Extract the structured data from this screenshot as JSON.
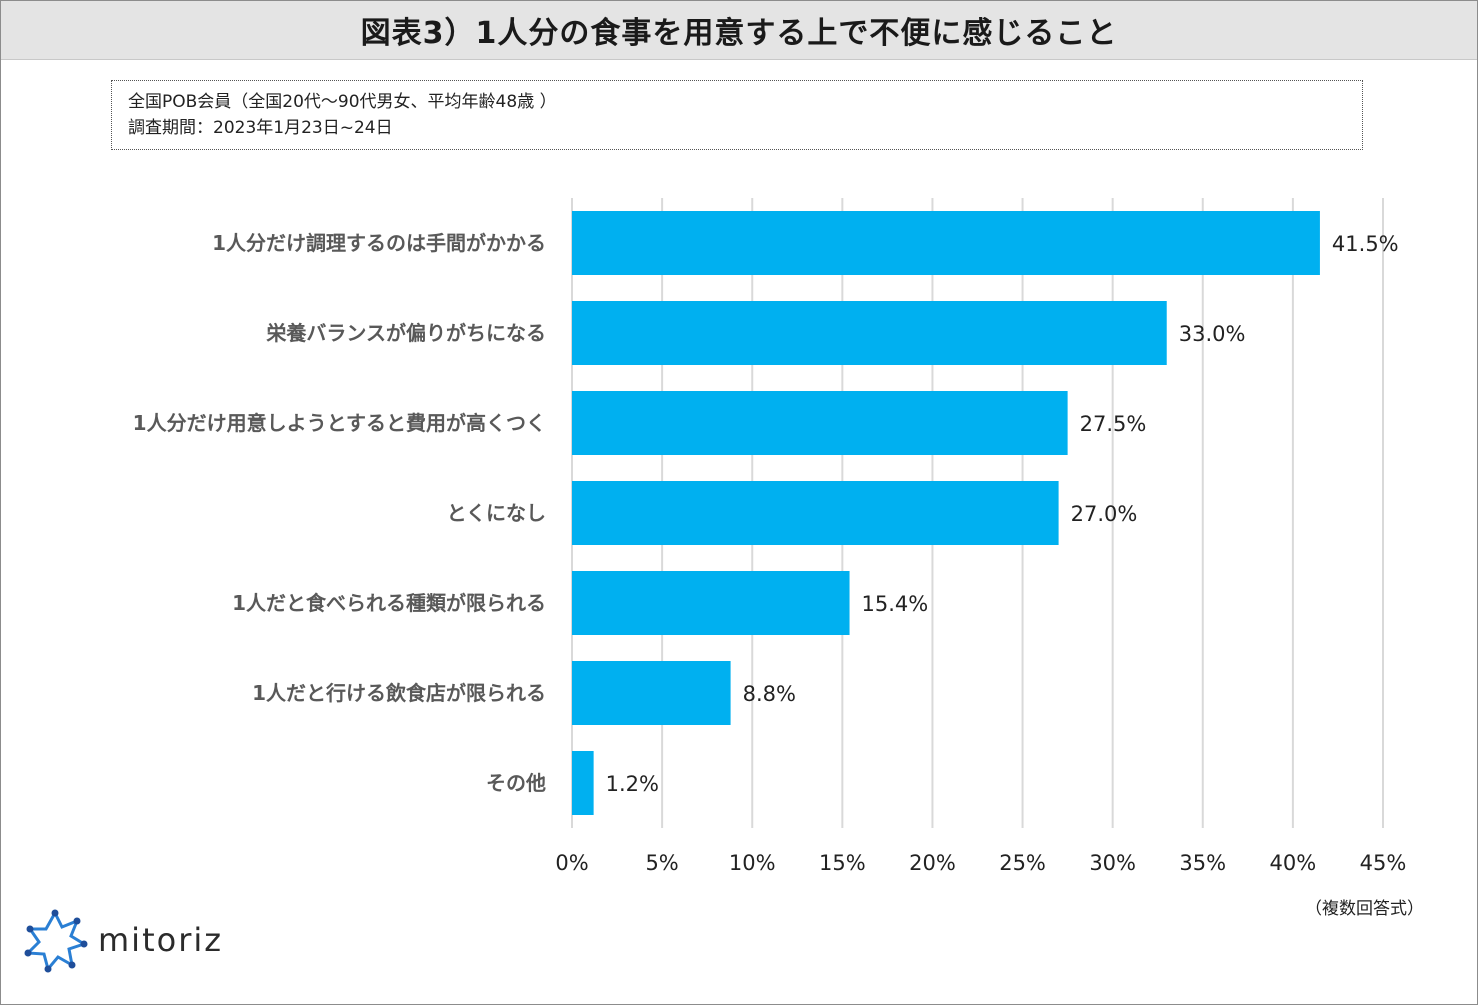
{
  "title": "図表3）1人分の食事を用意する上で不便に感じること",
  "info": {
    "line1": "全国POB会員（全国20代〜90代男女、平均年齢48歳 ）",
    "line2": "調査期間：2023年1月23日~24日"
  },
  "note": "（複数回答式）",
  "logo": {
    "text": "mitoriz",
    "icon": "sun-burst-logo-icon"
  },
  "colors": {
    "bar": "#00b0f0",
    "grid": "#d9d9d9",
    "label": "#595959"
  },
  "chart_data": {
    "type": "bar",
    "orientation": "horizontal",
    "categories": [
      "1人分だけ調理するのは手間がかかる",
      "栄養バランスが偏りがちになる",
      "1人分だけ用意しようとすると費用が高くつく",
      "とくになし",
      "1人だと食べられる種類が限られる",
      "1人だと行ける飲食店が限られる",
      "その他"
    ],
    "values": [
      41.5,
      33.0,
      27.5,
      27.0,
      15.4,
      8.8,
      1.2
    ],
    "value_labels": [
      "41.5%",
      "33.0%",
      "27.5%",
      "27.0%",
      "15.4%",
      "8.8%",
      "1.2%"
    ],
    "xlim": [
      0,
      45
    ],
    "xticks": [
      0,
      5,
      10,
      15,
      20,
      25,
      30,
      35,
      40,
      45
    ],
    "xtick_labels": [
      "0%",
      "5%",
      "10%",
      "15%",
      "20%",
      "25%",
      "30%",
      "35%",
      "40%",
      "45%"
    ],
    "xlabel": "",
    "ylabel": "",
    "grid": "vertical"
  }
}
